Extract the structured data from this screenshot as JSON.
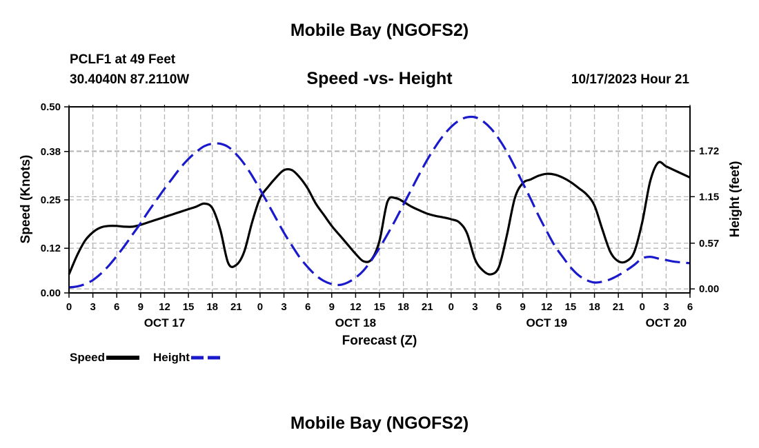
{
  "header": {
    "title": "Mobile Bay (NGOFS2)",
    "station": "PCLF1 at 49 Feet",
    "coords": "30.4040N  87.2110W",
    "subtitle": "Speed -vs- Height",
    "timestamp": "10/17/2023 Hour 21"
  },
  "footer": {
    "title": "Mobile Bay (NGOFS2)"
  },
  "legend": {
    "speed_label": "Speed",
    "height_label": "Height"
  },
  "colors": {
    "speed": "#000000",
    "height": "#1a1acc",
    "grid": "#b4b4b4"
  },
  "chart_data": {
    "type": "line",
    "xlabel": "Forecast (Z)",
    "ylabel": "Speed (Knots)",
    "y2label": "Height (feet)",
    "x_unit": "hours since OCT 17 00Z",
    "xlim": [
      0,
      78
    ],
    "ylim": [
      0,
      0.5
    ],
    "y2lim": [
      -0.05,
      2.27
    ],
    "x_tick_labels": [
      "0",
      "3",
      "6",
      "9",
      "12",
      "15",
      "18",
      "21",
      "0",
      "3",
      "6",
      "9",
      "12",
      "15",
      "18",
      "21",
      "0",
      "3",
      "6",
      "9",
      "12",
      "15",
      "18",
      "21",
      "0",
      "3",
      "6"
    ],
    "date_labels": [
      {
        "label": "OCT 17",
        "hour": 12
      },
      {
        "label": "OCT 18",
        "hour": 36
      },
      {
        "label": "OCT 19",
        "hour": 60
      },
      {
        "label": "OCT 20",
        "hour": 75
      }
    ],
    "y_ticks": [
      0,
      0.12,
      0.25,
      0.38,
      0.5
    ],
    "y_tick_labels": [
      "0.00",
      "0.12",
      "0.25",
      "0.38",
      "0.50"
    ],
    "y2_ticks": [
      0,
      0.57,
      1.15,
      1.72
    ],
    "y2_tick_labels": [
      "0.00",
      "0.57",
      "1.15",
      "1.72"
    ],
    "grid": true,
    "legend_position": "bottom-left",
    "series": [
      {
        "name": "Speed",
        "axis": "left",
        "style": "solid",
        "x": [
          0,
          1,
          2,
          3,
          4,
          5,
          6,
          7,
          8,
          9,
          10,
          11,
          12,
          13,
          14,
          15,
          16,
          17,
          18,
          19,
          20,
          21,
          22,
          23,
          24,
          25,
          26,
          27,
          28,
          29,
          30,
          31,
          32,
          33,
          34,
          35,
          36,
          37,
          38,
          39,
          40,
          41,
          42,
          43,
          44,
          45,
          46,
          47,
          48,
          49,
          50,
          51,
          52,
          53,
          54,
          55,
          56,
          57,
          58,
          59,
          60,
          61,
          62,
          63,
          64,
          65,
          66,
          67,
          68,
          69,
          70,
          71,
          72,
          73,
          74,
          75,
          76,
          77,
          78
        ],
        "values": [
          0.05,
          0.1,
          0.14,
          0.163,
          0.176,
          0.18,
          0.18,
          0.178,
          0.178,
          0.183,
          0.19,
          0.197,
          0.204,
          0.211,
          0.218,
          0.225,
          0.232,
          0.24,
          0.228,
          0.17,
          0.08,
          0.075,
          0.11,
          0.19,
          0.255,
          0.285,
          0.31,
          0.33,
          0.33,
          0.31,
          0.28,
          0.24,
          0.21,
          0.18,
          0.155,
          0.13,
          0.105,
          0.085,
          0.09,
          0.14,
          0.245,
          0.255,
          0.245,
          0.232,
          0.222,
          0.213,
          0.207,
          0.203,
          0.198,
          0.19,
          0.16,
          0.09,
          0.06,
          0.05,
          0.07,
          0.155,
          0.255,
          0.295,
          0.305,
          0.315,
          0.32,
          0.318,
          0.31,
          0.298,
          0.282,
          0.265,
          0.235,
          0.17,
          0.11,
          0.085,
          0.085,
          0.11,
          0.19,
          0.3,
          0.35,
          0.34,
          0.33,
          0.32,
          0.31
        ]
      },
      {
        "name": "Height",
        "axis": "right",
        "style": "dashed",
        "x": [
          0,
          1,
          2,
          3,
          4,
          5,
          6,
          7,
          8,
          9,
          10,
          11,
          12,
          13,
          14,
          15,
          16,
          17,
          18,
          19,
          20,
          21,
          22,
          23,
          24,
          25,
          26,
          27,
          28,
          29,
          30,
          31,
          32,
          33,
          34,
          35,
          36,
          37,
          38,
          39,
          40,
          41,
          42,
          43,
          44,
          45,
          46,
          47,
          48,
          49,
          50,
          51,
          52,
          53,
          54,
          55,
          56,
          57,
          58,
          59,
          60,
          61,
          62,
          63,
          64,
          65,
          66,
          67,
          68,
          69,
          70,
          71,
          72,
          73,
          74,
          75,
          76,
          77,
          78
        ],
        "values": [
          0.02,
          0.03,
          0.06,
          0.11,
          0.19,
          0.29,
          0.41,
          0.54,
          0.68,
          0.82,
          0.97,
          1.11,
          1.25,
          1.38,
          1.51,
          1.62,
          1.71,
          1.78,
          1.81,
          1.81,
          1.77,
          1.68,
          1.56,
          1.41,
          1.24,
          1.06,
          0.88,
          0.7,
          0.54,
          0.39,
          0.27,
          0.17,
          0.1,
          0.06,
          0.05,
          0.08,
          0.14,
          0.23,
          0.36,
          0.51,
          0.68,
          0.86,
          1.05,
          1.24,
          1.43,
          1.61,
          1.77,
          1.91,
          2.02,
          2.1,
          2.14,
          2.14,
          2.09,
          2.0,
          1.87,
          1.71,
          1.52,
          1.32,
          1.12,
          0.91,
          0.72,
          0.54,
          0.4,
          0.27,
          0.17,
          0.11,
          0.08,
          0.09,
          0.12,
          0.17,
          0.23,
          0.3,
          0.38,
          0.4,
          0.38,
          0.36,
          0.34,
          0.33,
          0.32
        ]
      }
    ]
  }
}
